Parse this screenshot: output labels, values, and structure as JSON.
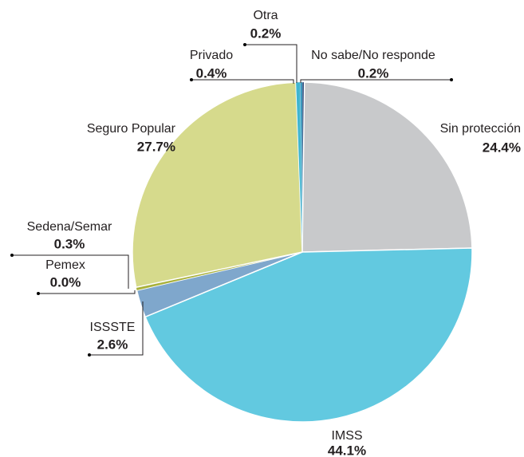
{
  "chart_data": {
    "type": "pie",
    "categories": [
      "No sabe/No responde",
      "Sin protección",
      "IMSS",
      "ISSSTE",
      "Pemex",
      "Sedena/Semar",
      "Seguro Popular",
      "Privado",
      "Otra"
    ],
    "values": [
      0.2,
      24.4,
      44.1,
      2.6,
      0.0,
      0.3,
      27.7,
      0.4,
      0.2
    ],
    "value_labels": [
      "0.2%",
      "24.4%",
      "44.1%",
      "2.6%",
      "0.0%",
      "0.3%",
      "27.7%",
      "0.4%",
      "0.2%"
    ],
    "colors": [
      "#1b3b6f",
      "#c8c9cb",
      "#62c9e0",
      "#7fa7cc",
      "#5d6b2a",
      "#a9b13b",
      "#d6da8c",
      "#3fb5d0",
      "#2a8fb8"
    ]
  }
}
